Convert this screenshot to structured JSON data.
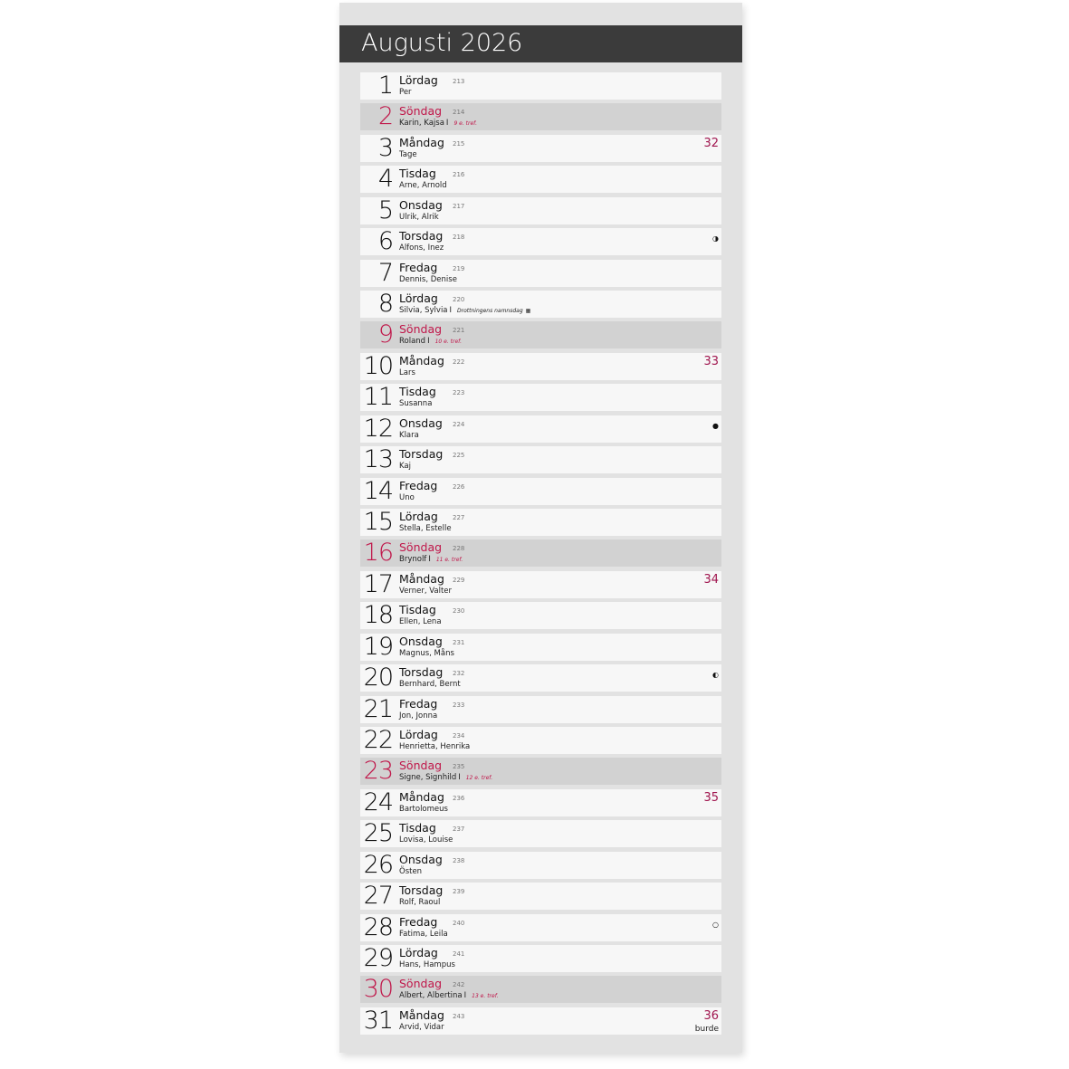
{
  "title": "Augusti 2026",
  "brand": "burde",
  "colors": {
    "header": "#3b3b3b",
    "sunday": "#c0174a",
    "week": "#a0154e"
  },
  "days": [
    {
      "d": "1",
      "wd": "Lördag",
      "n": "213",
      "names": "Per"
    },
    {
      "d": "2",
      "wd": "Söndag",
      "n": "214",
      "names": "Karin, Kajsa",
      "note": "9 e. tref.",
      "sun": true
    },
    {
      "d": "3",
      "wd": "Måndag",
      "n": "215",
      "names": "Tage",
      "week": "32"
    },
    {
      "d": "4",
      "wd": "Tisdag",
      "n": "216",
      "names": "Arne, Arnold"
    },
    {
      "d": "5",
      "wd": "Onsdag",
      "n": "217",
      "names": "Ulrik, Alrik"
    },
    {
      "d": "6",
      "wd": "Torsdag",
      "n": "218",
      "names": "Alfons, Inez",
      "moon": "◑",
      "moon_icon": "first-quarter-moon-icon"
    },
    {
      "d": "7",
      "wd": "Fredag",
      "n": "219",
      "names": "Dennis, Denise"
    },
    {
      "d": "8",
      "wd": "Lördag",
      "n": "220",
      "names": "Silvia, Sylvia",
      "note": "Drottningens namnsdag",
      "flag": true
    },
    {
      "d": "9",
      "wd": "Söndag",
      "n": "221",
      "names": "Roland",
      "note": "10 e. tref.",
      "sun": true
    },
    {
      "d": "10",
      "wd": "Måndag",
      "n": "222",
      "names": "Lars",
      "week": "33"
    },
    {
      "d": "11",
      "wd": "Tisdag",
      "n": "223",
      "names": "Susanna"
    },
    {
      "d": "12",
      "wd": "Onsdag",
      "n": "224",
      "names": "Klara",
      "moon": "●",
      "moon_icon": "new-moon-icon"
    },
    {
      "d": "13",
      "wd": "Torsdag",
      "n": "225",
      "names": "Kaj"
    },
    {
      "d": "14",
      "wd": "Fredag",
      "n": "226",
      "names": "Uno"
    },
    {
      "d": "15",
      "wd": "Lördag",
      "n": "227",
      "names": "Stella, Estelle"
    },
    {
      "d": "16",
      "wd": "Söndag",
      "n": "228",
      "names": "Brynolf",
      "note": "11 e. tref.",
      "sun": true
    },
    {
      "d": "17",
      "wd": "Måndag",
      "n": "229",
      "names": "Verner, Valter",
      "week": "34"
    },
    {
      "d": "18",
      "wd": "Tisdag",
      "n": "230",
      "names": "Ellen, Lena"
    },
    {
      "d": "19",
      "wd": "Onsdag",
      "n": "231",
      "names": "Magnus, Måns"
    },
    {
      "d": "20",
      "wd": "Torsdag",
      "n": "232",
      "names": "Bernhard, Bernt",
      "moon": "◐",
      "moon_icon": "last-quarter-moon-icon"
    },
    {
      "d": "21",
      "wd": "Fredag",
      "n": "233",
      "names": "Jon, Jonna"
    },
    {
      "d": "22",
      "wd": "Lördag",
      "n": "234",
      "names": "Henrietta, Henrika"
    },
    {
      "d": "23",
      "wd": "Söndag",
      "n": "235",
      "names": "Signe, Signhild",
      "note": "12 e. tref.",
      "sun": true
    },
    {
      "d": "24",
      "wd": "Måndag",
      "n": "236",
      "names": "Bartolomeus",
      "week": "35"
    },
    {
      "d": "25",
      "wd": "Tisdag",
      "n": "237",
      "names": "Lovisa, Louise"
    },
    {
      "d": "26",
      "wd": "Onsdag",
      "n": "238",
      "names": "Östen"
    },
    {
      "d": "27",
      "wd": "Torsdag",
      "n": "239",
      "names": "Rolf, Raoul"
    },
    {
      "d": "28",
      "wd": "Fredag",
      "n": "240",
      "names": "Fatima, Leila",
      "moon": "○",
      "moon_icon": "full-moon-icon"
    },
    {
      "d": "29",
      "wd": "Lördag",
      "n": "241",
      "names": "Hans, Hampus"
    },
    {
      "d": "30",
      "wd": "Söndag",
      "n": "242",
      "names": "Albert, Albertina",
      "note": "13 e. tref.",
      "sun": true
    },
    {
      "d": "31",
      "wd": "Måndag",
      "n": "243",
      "names": "Arvid, Vidar",
      "week": "36",
      "brand": true
    }
  ]
}
